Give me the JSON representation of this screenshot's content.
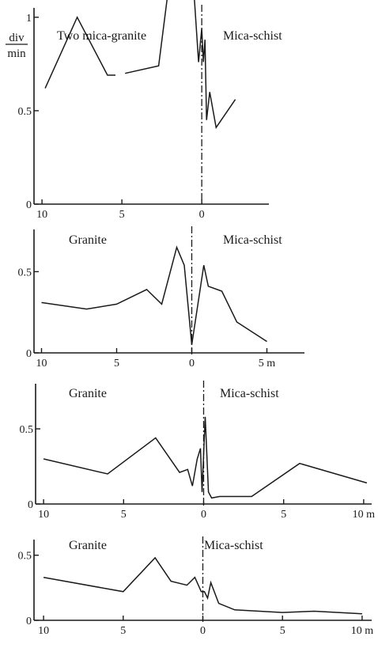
{
  "unit": {
    "numerator": "div",
    "denominator": "min"
  },
  "chart_data": [
    {
      "type": "line",
      "xlim": [
        10.5,
        -4.2
      ],
      "ylim": [
        0,
        1.05
      ],
      "yticks": [
        0,
        0.5,
        1
      ],
      "ytick_labels": [
        "0",
        "0.5",
        "1"
      ],
      "xticks": [
        10,
        5,
        0
      ],
      "xtick_labels": [
        "10",
        "5",
        "0"
      ],
      "left_label": "Two mica-granite",
      "right_label": "Mica-schist",
      "contact": 0,
      "segments": [
        [
          [
            9.8,
            0.62
          ],
          [
            7.8,
            1.0
          ],
          [
            5.9,
            0.69
          ],
          [
            5.4,
            0.69
          ]
        ],
        [
          [
            4.8,
            0.7
          ],
          [
            2.7,
            0.74
          ],
          [
            1.9,
            1.28
          ],
          [
            0.5,
            1.15
          ],
          [
            0.2,
            0.76
          ],
          [
            0.0,
            0.94
          ],
          [
            -0.1,
            0.76
          ],
          [
            -0.2,
            0.88
          ],
          [
            -0.3,
            0.45
          ],
          [
            -0.5,
            0.6
          ],
          [
            -0.9,
            0.41
          ],
          [
            -2.1,
            0.56
          ]
        ]
      ]
    },
    {
      "type": "line",
      "xlim": [
        10.5,
        -7.5
      ],
      "ylim": [
        0,
        0.76
      ],
      "yticks": [
        0,
        0.5
      ],
      "ytick_labels": [
        "0",
        "0.5"
      ],
      "xticks": [
        10,
        5,
        0,
        -5
      ],
      "xtick_labels": [
        "10",
        "5",
        "0",
        "5 m"
      ],
      "left_label": "Granite",
      "right_label": "Mica-schist",
      "contact": 0,
      "segments": [
        [
          [
            10.0,
            0.31
          ],
          [
            7.0,
            0.27
          ],
          [
            5.0,
            0.3
          ],
          [
            3.0,
            0.39
          ],
          [
            2.0,
            0.3
          ],
          [
            1.0,
            0.65
          ],
          [
            0.5,
            0.54
          ],
          [
            0.0,
            0.05
          ],
          [
            -0.8,
            0.54
          ],
          [
            -1.1,
            0.41
          ],
          [
            -2.0,
            0.38
          ],
          [
            -3.0,
            0.19
          ],
          [
            -5.0,
            0.07
          ]
        ]
      ]
    },
    {
      "type": "line",
      "xlim": [
        10.5,
        -10.5
      ],
      "ylim": [
        0,
        0.8
      ],
      "yticks": [
        0,
        0.5
      ],
      "ytick_labels": [
        "0",
        "0.5"
      ],
      "xticks": [
        10,
        5,
        0,
        -5,
        -10
      ],
      "xtick_labels": [
        "10",
        "5",
        "0",
        "5",
        "10 m"
      ],
      "left_label": "Granite",
      "right_label": "Mica-schist",
      "contact": 0,
      "segments": [
        [
          [
            10.0,
            0.3
          ],
          [
            6.0,
            0.2
          ],
          [
            3.0,
            0.44
          ],
          [
            1.5,
            0.21
          ],
          [
            1.0,
            0.23
          ],
          [
            0.7,
            0.12
          ],
          [
            0.4,
            0.3
          ],
          [
            0.2,
            0.37
          ],
          [
            0.1,
            0.08
          ],
          [
            -0.1,
            0.58
          ],
          [
            -0.3,
            0.08
          ],
          [
            -0.5,
            0.04
          ],
          [
            -1.0,
            0.05
          ],
          [
            -3.0,
            0.05
          ],
          [
            -6.0,
            0.27
          ],
          [
            -10.2,
            0.14
          ]
        ]
      ]
    },
    {
      "type": "line",
      "xlim": [
        10.6,
        -10.6
      ],
      "ylim": [
        0,
        0.62
      ],
      "yticks": [
        0,
        0.5
      ],
      "ytick_labels": [
        "0",
        "0.5"
      ],
      "xticks": [
        10,
        5,
        0,
        -5,
        -10
      ],
      "xtick_labels": [
        "10",
        "5",
        "0",
        "5",
        "10 m"
      ],
      "left_label": "Granite",
      "right_label": "Mica-schist",
      "contact": 0,
      "segments": [
        [
          [
            10.0,
            0.33
          ],
          [
            5.0,
            0.22
          ],
          [
            3.0,
            0.48
          ],
          [
            2.0,
            0.3
          ],
          [
            1.0,
            0.27
          ],
          [
            0.5,
            0.33
          ],
          [
            0.1,
            0.22
          ],
          [
            -0.1,
            0.22
          ],
          [
            -0.3,
            0.17
          ],
          [
            -0.5,
            0.29
          ],
          [
            -1.0,
            0.13
          ],
          [
            -2.0,
            0.08
          ],
          [
            -5.0,
            0.06
          ],
          [
            -7.0,
            0.07
          ],
          [
            -10.0,
            0.05
          ]
        ]
      ]
    }
  ]
}
